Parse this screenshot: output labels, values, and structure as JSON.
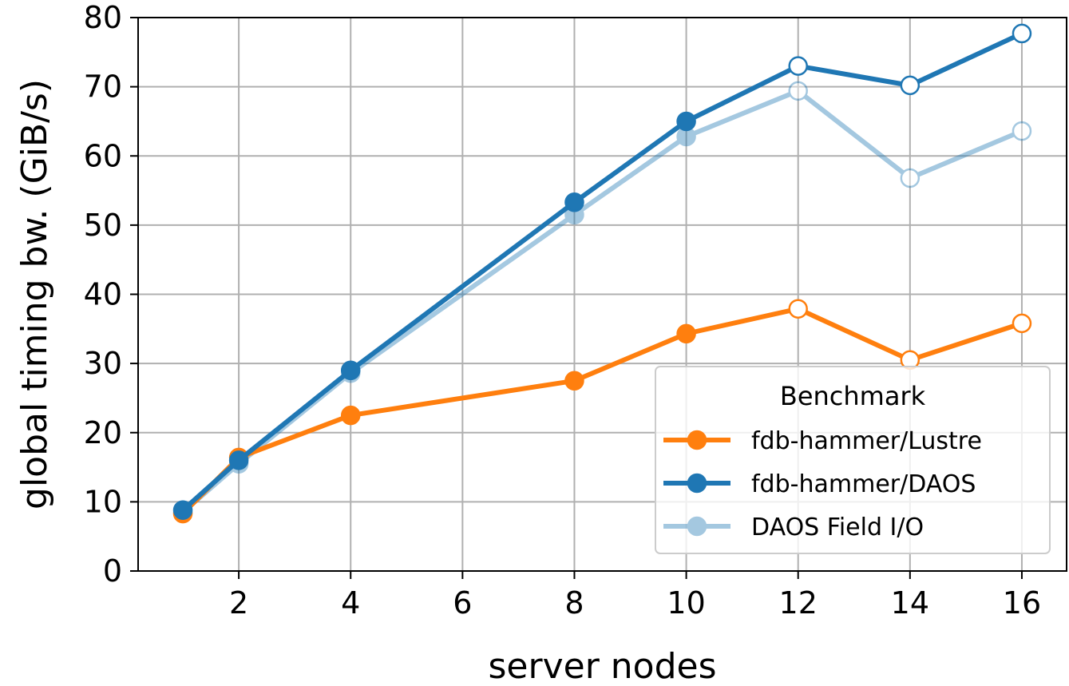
{
  "chart_data": {
    "type": "line",
    "title": "",
    "xlabel": "server nodes",
    "ylabel": "global timing bw. (GiB/s)",
    "xlim": [
      0.2,
      16.8
    ],
    "ylim": [
      0,
      80
    ],
    "xticks": [
      2,
      4,
      6,
      8,
      10,
      12,
      14,
      16
    ],
    "yticks": [
      0,
      10,
      20,
      30,
      40,
      50,
      60,
      70,
      80
    ],
    "grid": true,
    "legend": {
      "title": "Benchmark",
      "placement": "lower-right"
    },
    "series": [
      {
        "name": "fdb-hammer/Lustre",
        "color": "#ff7f0e",
        "opacity": 1,
        "x": [
          1,
          2,
          4,
          8,
          10,
          12,
          14,
          16
        ],
        "y": [
          8.3,
          16.4,
          22.5,
          27.5,
          34.3,
          37.9,
          30.5,
          35.8
        ],
        "hollow_markers_at_x": [
          12,
          14,
          16
        ]
      },
      {
        "name": "fdb-hammer/DAOS",
        "color": "#1f77b4",
        "opacity": 1,
        "x": [
          1,
          2,
          4,
          8,
          10,
          12,
          14,
          16
        ],
        "y": [
          8.8,
          16.0,
          29.0,
          53.3,
          65.0,
          73.0,
          70.2,
          77.7
        ],
        "hollow_markers_at_x": [
          12,
          14,
          16
        ]
      },
      {
        "name": "DAOS Field I/O",
        "color": "#1f77b4",
        "opacity": 0.4,
        "x": [
          1,
          2,
          4,
          8,
          10,
          12,
          14,
          16
        ],
        "y": [
          8.5,
          15.5,
          28.6,
          51.5,
          62.8,
          69.4,
          56.8,
          63.6
        ],
        "hollow_markers_at_x": [
          12,
          14,
          16
        ]
      }
    ]
  }
}
